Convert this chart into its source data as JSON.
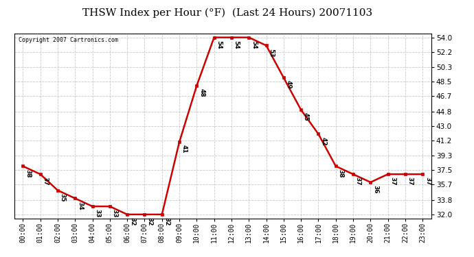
{
  "title": "THSW Index per Hour (°F)  (Last 24 Hours) 20071103",
  "copyright_text": "Copyright 2007 Cartronics.com",
  "hours": [
    0,
    1,
    2,
    3,
    4,
    5,
    6,
    7,
    8,
    9,
    10,
    11,
    12,
    13,
    14,
    15,
    16,
    17,
    18,
    19,
    20,
    21,
    22,
    23
  ],
  "values": [
    38,
    37,
    35,
    34,
    33,
    33,
    32,
    32,
    32,
    41,
    48,
    54,
    54,
    54,
    53,
    49,
    45,
    42,
    38,
    37,
    36,
    37,
    37,
    37
  ],
  "line_color": "#cc0000",
  "marker_color": "#cc0000",
  "bg_color": "#ffffff",
  "grid_color": "#bbbbbb",
  "yticks": [
    32.0,
    33.8,
    35.7,
    37.5,
    39.3,
    41.2,
    43.0,
    44.8,
    46.7,
    48.5,
    50.3,
    52.2,
    54.0
  ],
  "ylim": [
    31.5,
    54.5
  ],
  "xlabel_fontsize": 7,
  "ylabel_fontsize": 7.5,
  "title_fontsize": 11,
  "annotation_fontsize": 6.5,
  "copyright_fontsize": 6
}
